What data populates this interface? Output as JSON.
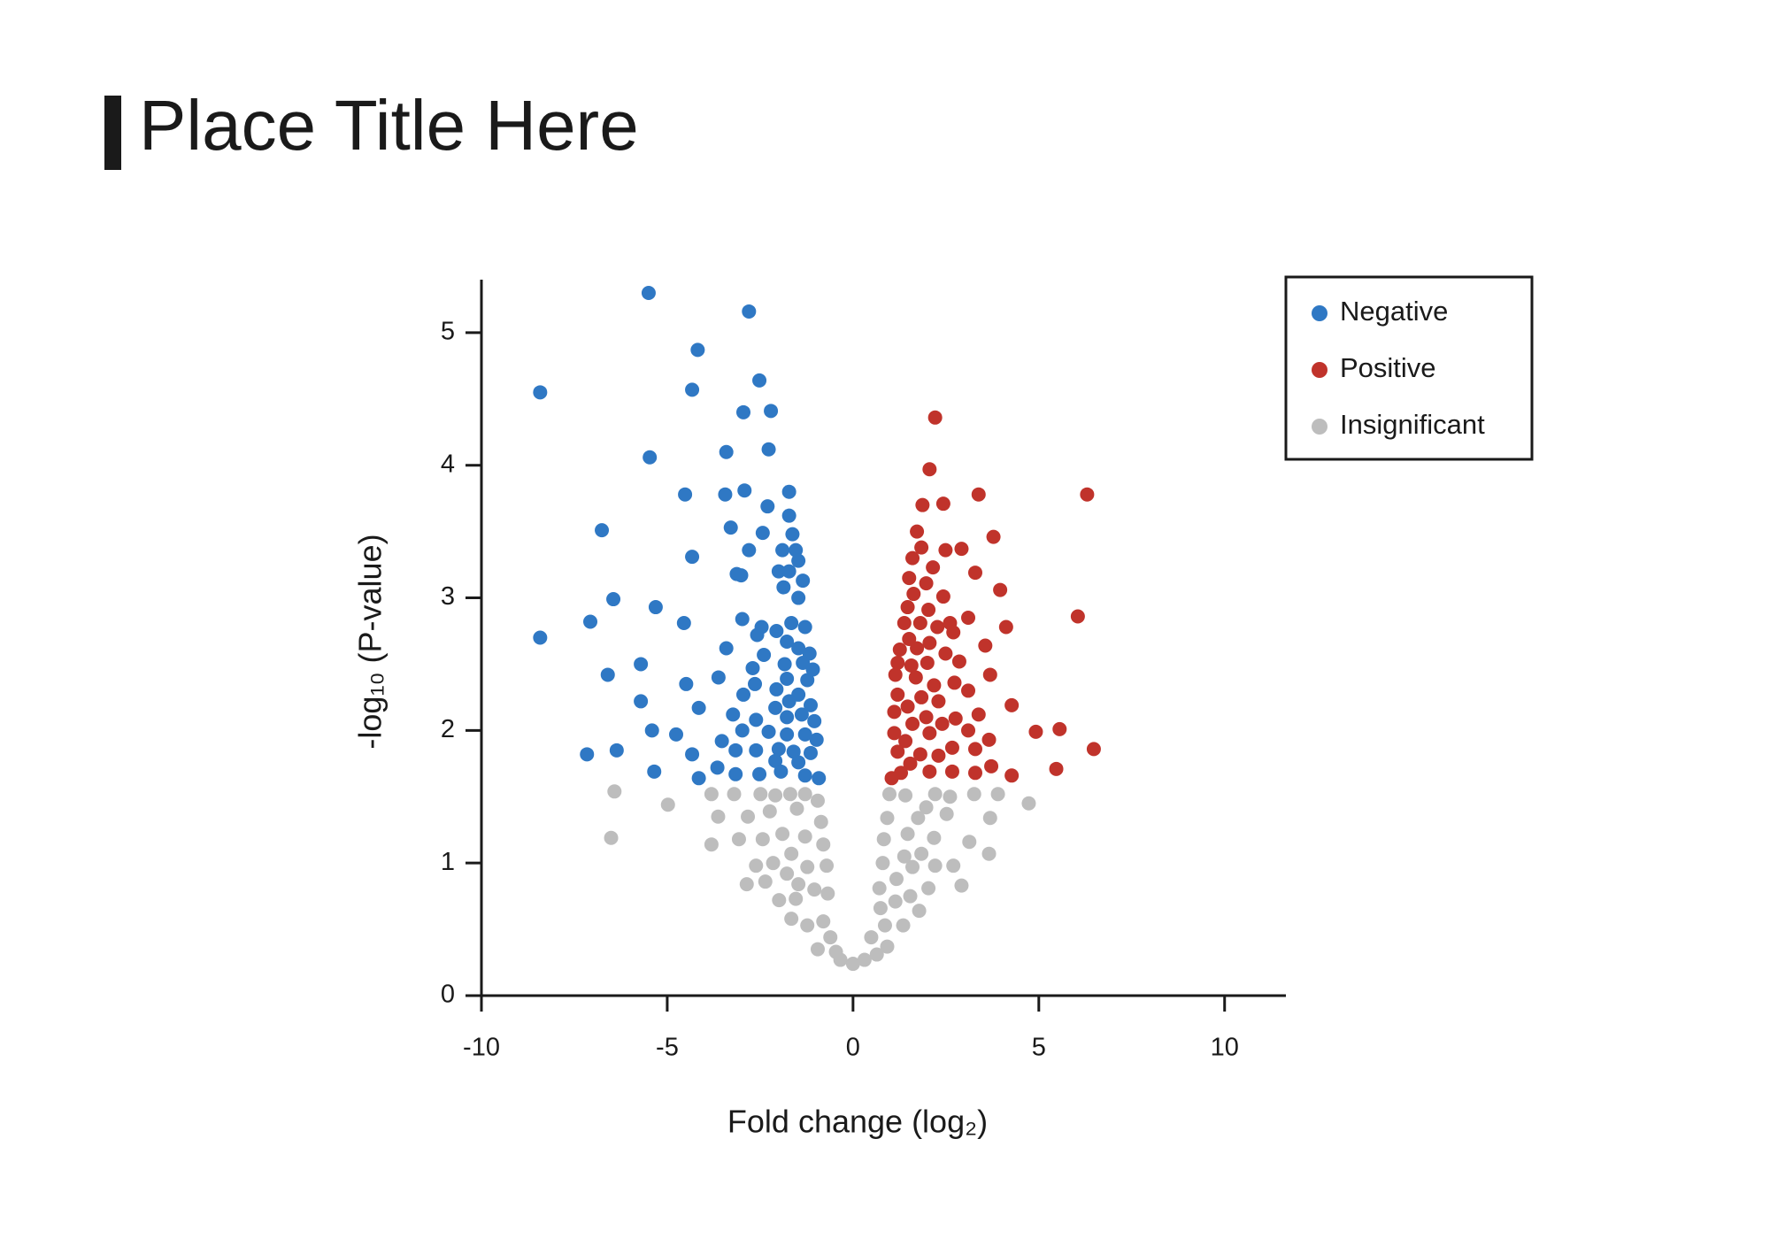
{
  "chart_data": {
    "type": "scatter",
    "title": "Place Title Here",
    "x_label": "Fold change (log₂)",
    "y_label": "-log₁₀ (P-value)",
    "xlim": [
      -10,
      11.65
    ],
    "ylim": [
      0,
      5.4
    ],
    "xticks": [
      -10,
      -5,
      0,
      5,
      10
    ],
    "yticks": [
      0,
      1,
      2,
      3,
      4,
      5
    ],
    "grid": false,
    "legend": "right",
    "series": [
      {
        "name": "Negative",
        "color": "#2f78c4",
        "x": [
          -8.42,
          -8.42,
          -5.5,
          -2.8,
          -4.18,
          -4.33,
          -2.52,
          -2.95,
          -2.21,
          -5.47,
          -3.41,
          -2.27,
          -4.52,
          -3.44,
          -2.92,
          -1.72,
          -2.3,
          -1.72,
          -6.76,
          -3.29,
          -2.43,
          -1.63,
          -2.8,
          -1.9,
          -1.54,
          -4.33,
          -2.0,
          -1.47,
          -3.13,
          -3.01,
          -1.72,
          -1.35,
          -6.45,
          -5.31,
          -1.87,
          -1.47,
          -7.07,
          -4.55,
          -2.98,
          -2.46,
          -2.06,
          -1.66,
          -1.29,
          -2.58,
          -1.78,
          -3.41,
          -1.47,
          -1.17,
          -5.71,
          -2.4,
          -2.7,
          -1.84,
          -1.35,
          -1.08,
          -6.6,
          -3.62,
          -4.49,
          -2.64,
          -1.78,
          -1.23,
          -2.95,
          -2.06,
          -1.47,
          -5.71,
          -4.15,
          -2.09,
          -1.72,
          -1.14,
          -3.23,
          -2.61,
          -1.78,
          -1.38,
          -1.04,
          -5.41,
          -4.76,
          -2.98,
          -2.27,
          -1.78,
          -1.29,
          -3.53,
          -0.98,
          -2.0,
          -6.36,
          -7.16,
          -4.33,
          -3.16,
          -2.61,
          -1.6,
          -1.14,
          -2.09,
          -1.47,
          -3.65,
          -5.35,
          -3.16,
          -2.52,
          -1.94,
          -4.15,
          -1.29,
          -0.92
        ],
        "values": [
          4.55,
          2.7,
          5.3,
          5.16,
          4.87,
          4.57,
          4.64,
          4.4,
          4.41,
          4.06,
          4.1,
          4.12,
          3.78,
          3.78,
          3.81,
          3.8,
          3.69,
          3.62,
          3.51,
          3.53,
          3.49,
          3.48,
          3.36,
          3.36,
          3.36,
          3.31,
          3.2,
          3.28,
          3.18,
          3.17,
          3.2,
          3.13,
          2.99,
          2.93,
          3.08,
          3.0,
          2.82,
          2.81,
          2.84,
          2.78,
          2.75,
          2.81,
          2.78,
          2.72,
          2.67,
          2.62,
          2.62,
          2.58,
          2.5,
          2.57,
          2.47,
          2.5,
          2.51,
          2.46,
          2.42,
          2.4,
          2.35,
          2.35,
          2.39,
          2.38,
          2.27,
          2.31,
          2.27,
          2.22,
          2.17,
          2.17,
          2.22,
          2.19,
          2.12,
          2.08,
          2.1,
          2.12,
          2.07,
          2.0,
          1.97,
          2.0,
          1.99,
          1.97,
          1.97,
          1.92,
          1.93,
          1.86,
          1.85,
          1.82,
          1.82,
          1.85,
          1.85,
          1.84,
          1.83,
          1.77,
          1.76,
          1.72,
          1.69,
          1.67,
          1.67,
          1.69,
          1.64,
          1.66,
          1.64
        ]
      },
      {
        "name": "Positive",
        "color": "#c0332b",
        "x": [
          2.21,
          2.06,
          6.3,
          3.38,
          1.87,
          2.43,
          1.72,
          3.78,
          1.84,
          2.92,
          2.49,
          1.6,
          2.15,
          3.29,
          1.51,
          1.97,
          3.96,
          1.63,
          2.43,
          1.47,
          2.03,
          3.1,
          6.05,
          4.12,
          1.38,
          1.81,
          2.27,
          2.61,
          2.7,
          1.51,
          2.06,
          3.56,
          1.26,
          1.72,
          2.49,
          1.2,
          1.57,
          2.0,
          2.86,
          3.69,
          1.14,
          1.69,
          2.18,
          2.73,
          3.1,
          1.2,
          1.84,
          2.3,
          4.27,
          1.47,
          1.11,
          1.97,
          2.76,
          3.38,
          2.4,
          1.6,
          3.1,
          4.92,
          5.56,
          1.11,
          2.06,
          3.66,
          1.41,
          2.67,
          3.29,
          6.48,
          1.2,
          1.81,
          2.3,
          1.54,
          3.72,
          5.47,
          2.06,
          2.67,
          3.29,
          4.27,
          1.29,
          1.04
        ],
        "values": [
          4.36,
          3.97,
          3.78,
          3.78,
          3.7,
          3.71,
          3.5,
          3.46,
          3.38,
          3.37,
          3.36,
          3.3,
          3.23,
          3.19,
          3.15,
          3.11,
          3.06,
          3.03,
          3.01,
          2.93,
          2.91,
          2.85,
          2.86,
          2.78,
          2.81,
          2.81,
          2.78,
          2.81,
          2.74,
          2.69,
          2.66,
          2.64,
          2.61,
          2.62,
          2.58,
          2.51,
          2.49,
          2.51,
          2.52,
          2.42,
          2.42,
          2.4,
          2.34,
          2.36,
          2.3,
          2.27,
          2.25,
          2.22,
          2.19,
          2.18,
          2.14,
          2.1,
          2.09,
          2.12,
          2.05,
          2.05,
          2.0,
          1.99,
          2.01,
          1.98,
          1.98,
          1.93,
          1.92,
          1.87,
          1.86,
          1.86,
          1.84,
          1.82,
          1.81,
          1.75,
          1.73,
          1.71,
          1.69,
          1.69,
          1.68,
          1.66,
          1.68,
          1.64
        ]
      },
      {
        "name": "Insignificant",
        "color": "#bdbdbd",
        "x": [
          -6.42,
          -4.98,
          -6.51,
          -3.81,
          -3.2,
          -2.49,
          -2.09,
          -1.69,
          -1.29,
          -0.95,
          -3.63,
          -2.83,
          -2.24,
          -1.51,
          -0.86,
          -3.07,
          -2.43,
          -1.9,
          -1.29,
          -3.81,
          -0.8,
          -1.66,
          -2.61,
          -2.15,
          -1.78,
          -1.23,
          -0.71,
          -2.86,
          -2.36,
          -1.47,
          -1.04,
          -1.99,
          -1.54,
          -0.68,
          -1.66,
          -1.23,
          -0.8,
          -0.61,
          -0.95,
          -0.46,
          -0.34,
          0,
          0.31,
          0.64,
          0.49,
          0.92,
          0.86,
          1.35,
          0.74,
          1.14,
          1.78,
          1.54,
          2.03,
          0.71,
          1.17,
          1.6,
          2.21,
          2.92,
          2.7,
          0.8,
          1.38,
          1.84,
          3.66,
          0.83,
          1.47,
          2.18,
          3.13,
          0.92,
          1.75,
          2.52,
          3.69,
          0.98,
          1.41,
          2.21,
          2.61,
          3.26,
          3.9,
          4.73,
          1.97
        ],
        "values": [
          1.54,
          1.44,
          1.19,
          1.52,
          1.52,
          1.52,
          1.51,
          1.52,
          1.52,
          1.47,
          1.35,
          1.35,
          1.39,
          1.41,
          1.31,
          1.18,
          1.18,
          1.22,
          1.2,
          1.14,
          1.14,
          1.07,
          0.98,
          1.0,
          0.92,
          0.97,
          0.98,
          0.84,
          0.86,
          0.84,
          0.8,
          0.72,
          0.73,
          0.77,
          0.58,
          0.53,
          0.56,
          0.44,
          0.35,
          0.33,
          0.27,
          0.24,
          0.27,
          0.31,
          0.44,
          0.37,
          0.53,
          0.53,
          0.66,
          0.71,
          0.64,
          0.75,
          0.81,
          0.81,
          0.88,
          0.97,
          0.98,
          0.83,
          0.98,
          1.0,
          1.05,
          1.07,
          1.07,
          1.18,
          1.22,
          1.19,
          1.16,
          1.34,
          1.34,
          1.37,
          1.34,
          1.52,
          1.51,
          1.52,
          1.5,
          1.52,
          1.52,
          1.45,
          1.42
        ]
      }
    ]
  }
}
